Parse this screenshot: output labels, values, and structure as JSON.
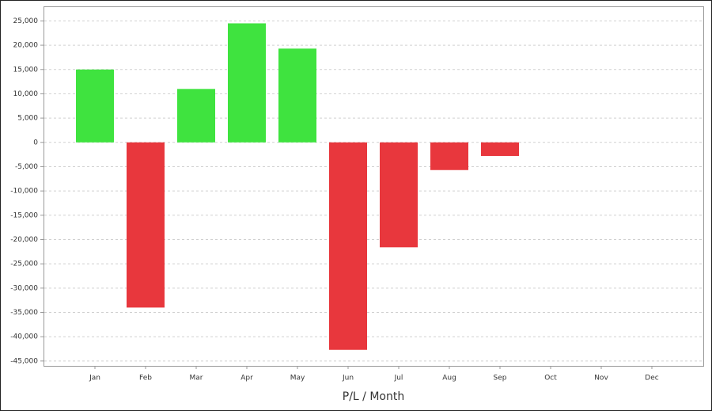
{
  "chart_data": {
    "type": "bar",
    "x_label": "P/L / Month",
    "categories": [
      "Jan",
      "Feb",
      "Mar",
      "Apr",
      "May",
      "Jun",
      "Jul",
      "Aug",
      "Sep",
      "Oct",
      "Nov",
      "Dec"
    ],
    "values": [
      15000,
      -34000,
      11000,
      24500,
      19300,
      -42700,
      -21600,
      -5700,
      -2800,
      null,
      null,
      null
    ],
    "positive_color": "#3fe33f",
    "negative_color": "#e8373d",
    "ylim": [
      -46000,
      28000
    ],
    "yticks": [
      {
        "value": 25000,
        "label": "25,000"
      },
      {
        "value": 20000,
        "label": "20,000"
      },
      {
        "value": 15000,
        "label": "15,000"
      },
      {
        "value": 10000,
        "label": "10,000"
      },
      {
        "value": 5000,
        "label": "5,000"
      },
      0,
      {
        "value": -5000,
        "label": "-5,000"
      },
      {
        "value": -10000,
        "label": "-10,000"
      },
      {
        "value": -15000,
        "label": "-15,000"
      },
      {
        "value": -20000,
        "label": "-20,000"
      },
      {
        "value": -25000,
        "label": "-25,000"
      },
      {
        "value": -30000,
        "label": "-30,000"
      },
      {
        "value": -35000,
        "label": "-35,000"
      },
      {
        "value": -40000,
        "label": "-40,000"
      },
      {
        "value": -45000,
        "label": "-45,000"
      }
    ],
    "grid": true
  }
}
